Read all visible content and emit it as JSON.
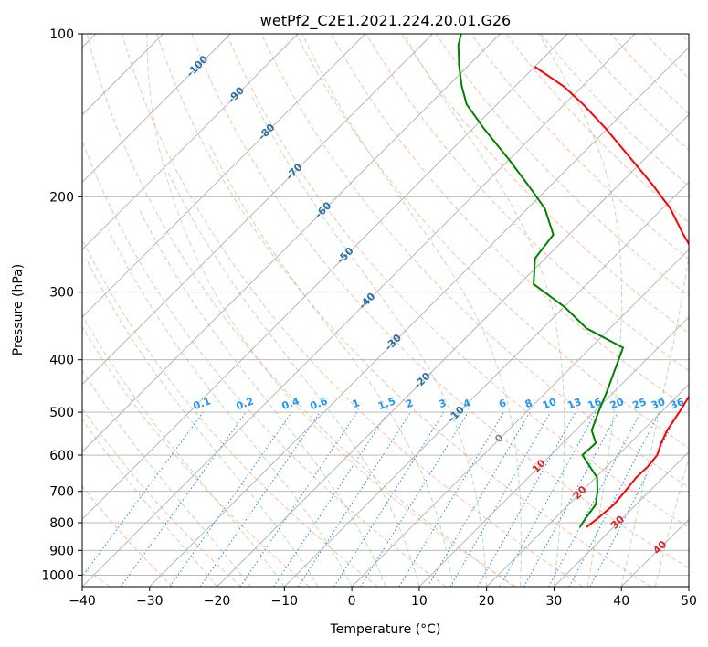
{
  "chart_data": {
    "type": "line",
    "subtype": "skew-t log-p",
    "title": "wetPf2_C2E1.2021.224.20.01.G26",
    "xlabel": "Temperature (°C)",
    "ylabel": "Pressure (hPa)",
    "xlim": [
      -40,
      50
    ],
    "ylim": [
      1050,
      100
    ],
    "y_scale": "log",
    "x_ticks": [
      -40,
      -30,
      -20,
      -10,
      0,
      10,
      20,
      30,
      40,
      50
    ],
    "y_ticks": [
      100,
      200,
      300,
      400,
      500,
      600,
      700,
      800,
      900,
      1000
    ],
    "grid": true,
    "colors": {
      "temperature": "#ff0000",
      "dewpoint": "#008000",
      "isotherm": "#b0b0b0",
      "dry_adiabat": "#f4a582",
      "moist_adiabat": "#a6d6a6",
      "mixing_ratio": "#1e88e5",
      "theta_e": "#e0c8a8",
      "mixing_label": "#2196f3",
      "isotherm_label": "#2a6fa8",
      "iso_warm_label": "#d62728",
      "zero_label": "#888888"
    },
    "series": [
      {
        "key": "temperature",
        "points": [
          {
            "p": 815,
            "t": 26.0
          },
          {
            "p": 780,
            "t": 26.4
          },
          {
            "p": 740,
            "t": 26.7
          },
          {
            "p": 700,
            "t": 26.4
          },
          {
            "p": 660,
            "t": 26.0
          },
          {
            "p": 630,
            "t": 26.1
          },
          {
            "p": 600,
            "t": 25.8
          },
          {
            "p": 570,
            "t": 24.6
          },
          {
            "p": 540,
            "t": 23.6
          },
          {
            "p": 500,
            "t": 22.7
          },
          {
            "p": 460,
            "t": 21.6
          },
          {
            "p": 420,
            "t": 19.8
          },
          {
            "p": 380,
            "t": 17.6
          },
          {
            "p": 350,
            "t": 15.8
          },
          {
            "p": 320,
            "t": 12.6
          },
          {
            "p": 290,
            "t": 8.1
          },
          {
            "p": 260,
            "t": 2.6
          },
          {
            "p": 235,
            "t": -3.0
          },
          {
            "p": 210,
            "t": -8.9
          },
          {
            "p": 190,
            "t": -15.0
          },
          {
            "p": 170,
            "t": -22.1
          },
          {
            "p": 150,
            "t": -30.1
          },
          {
            "p": 135,
            "t": -37.2
          },
          {
            "p": 125,
            "t": -42.8
          },
          {
            "p": 120,
            "t": -46.3
          },
          {
            "p": 115,
            "t": -50.0
          }
        ]
      },
      {
        "key": "dewpoint",
        "points": [
          {
            "p": 815,
            "t": 25.0
          },
          {
            "p": 780,
            "t": 24.5
          },
          {
            "p": 740,
            "t": 24.0
          },
          {
            "p": 700,
            "t": 22.3
          },
          {
            "p": 660,
            "t": 20.2
          },
          {
            "p": 630,
            "t": 17.5
          },
          {
            "p": 600,
            "t": 14.7
          },
          {
            "p": 570,
            "t": 14.9
          },
          {
            "p": 540,
            "t": 12.4
          },
          {
            "p": 500,
            "t": 10.7
          },
          {
            "p": 460,
            "t": 9.0
          },
          {
            "p": 420,
            "t": 7.0
          },
          {
            "p": 380,
            "t": 4.8
          },
          {
            "p": 350,
            "t": -3.5
          },
          {
            "p": 320,
            "t": -9.8
          },
          {
            "p": 290,
            "t": -17.9
          },
          {
            "p": 260,
            "t": -21.5
          },
          {
            "p": 235,
            "t": -22.3
          },
          {
            "p": 210,
            "t": -27.5
          },
          {
            "p": 190,
            "t": -33.5
          },
          {
            "p": 170,
            "t": -40.3
          },
          {
            "p": 150,
            "t": -48.2
          },
          {
            "p": 135,
            "t": -54.5
          },
          {
            "p": 125,
            "t": -57.9
          },
          {
            "p": 115,
            "t": -61.2
          },
          {
            "p": 105,
            "t": -64.5
          },
          {
            "p": 100,
            "t": -65.8
          }
        ]
      }
    ],
    "isotherm_labels": [
      {
        "text": "-100",
        "t": -100,
        "p": 115
      },
      {
        "text": "-90",
        "t": -90,
        "p": 130
      },
      {
        "text": "-80",
        "t": -80,
        "p": 152
      },
      {
        "text": "-70",
        "t": -70,
        "p": 180
      },
      {
        "text": "-60",
        "t": -60,
        "p": 212
      },
      {
        "text": "-50",
        "t": -50,
        "p": 257
      },
      {
        "text": "-40",
        "t": -40,
        "p": 312
      },
      {
        "text": "-30",
        "t": -30,
        "p": 372
      },
      {
        "text": "-20",
        "t": -20,
        "p": 438
      },
      {
        "text": "-10",
        "t": -10,
        "p": 505
      },
      {
        "text": "0",
        "t": 0,
        "p": 560
      },
      {
        "text": "10",
        "t": 10,
        "p": 630
      },
      {
        "text": "20",
        "t": 20,
        "p": 705
      },
      {
        "text": "30",
        "t": 30,
        "p": 800
      },
      {
        "text": "40",
        "t": 40,
        "p": 890
      }
    ],
    "mixing_ratio_labels": [
      "0.1",
      "0.2",
      "0.4",
      "0.6",
      "1",
      "1.5",
      "2",
      "3",
      "4",
      "6",
      "8",
      "10",
      "13",
      "16",
      "20",
      "25",
      "30",
      "36"
    ]
  }
}
